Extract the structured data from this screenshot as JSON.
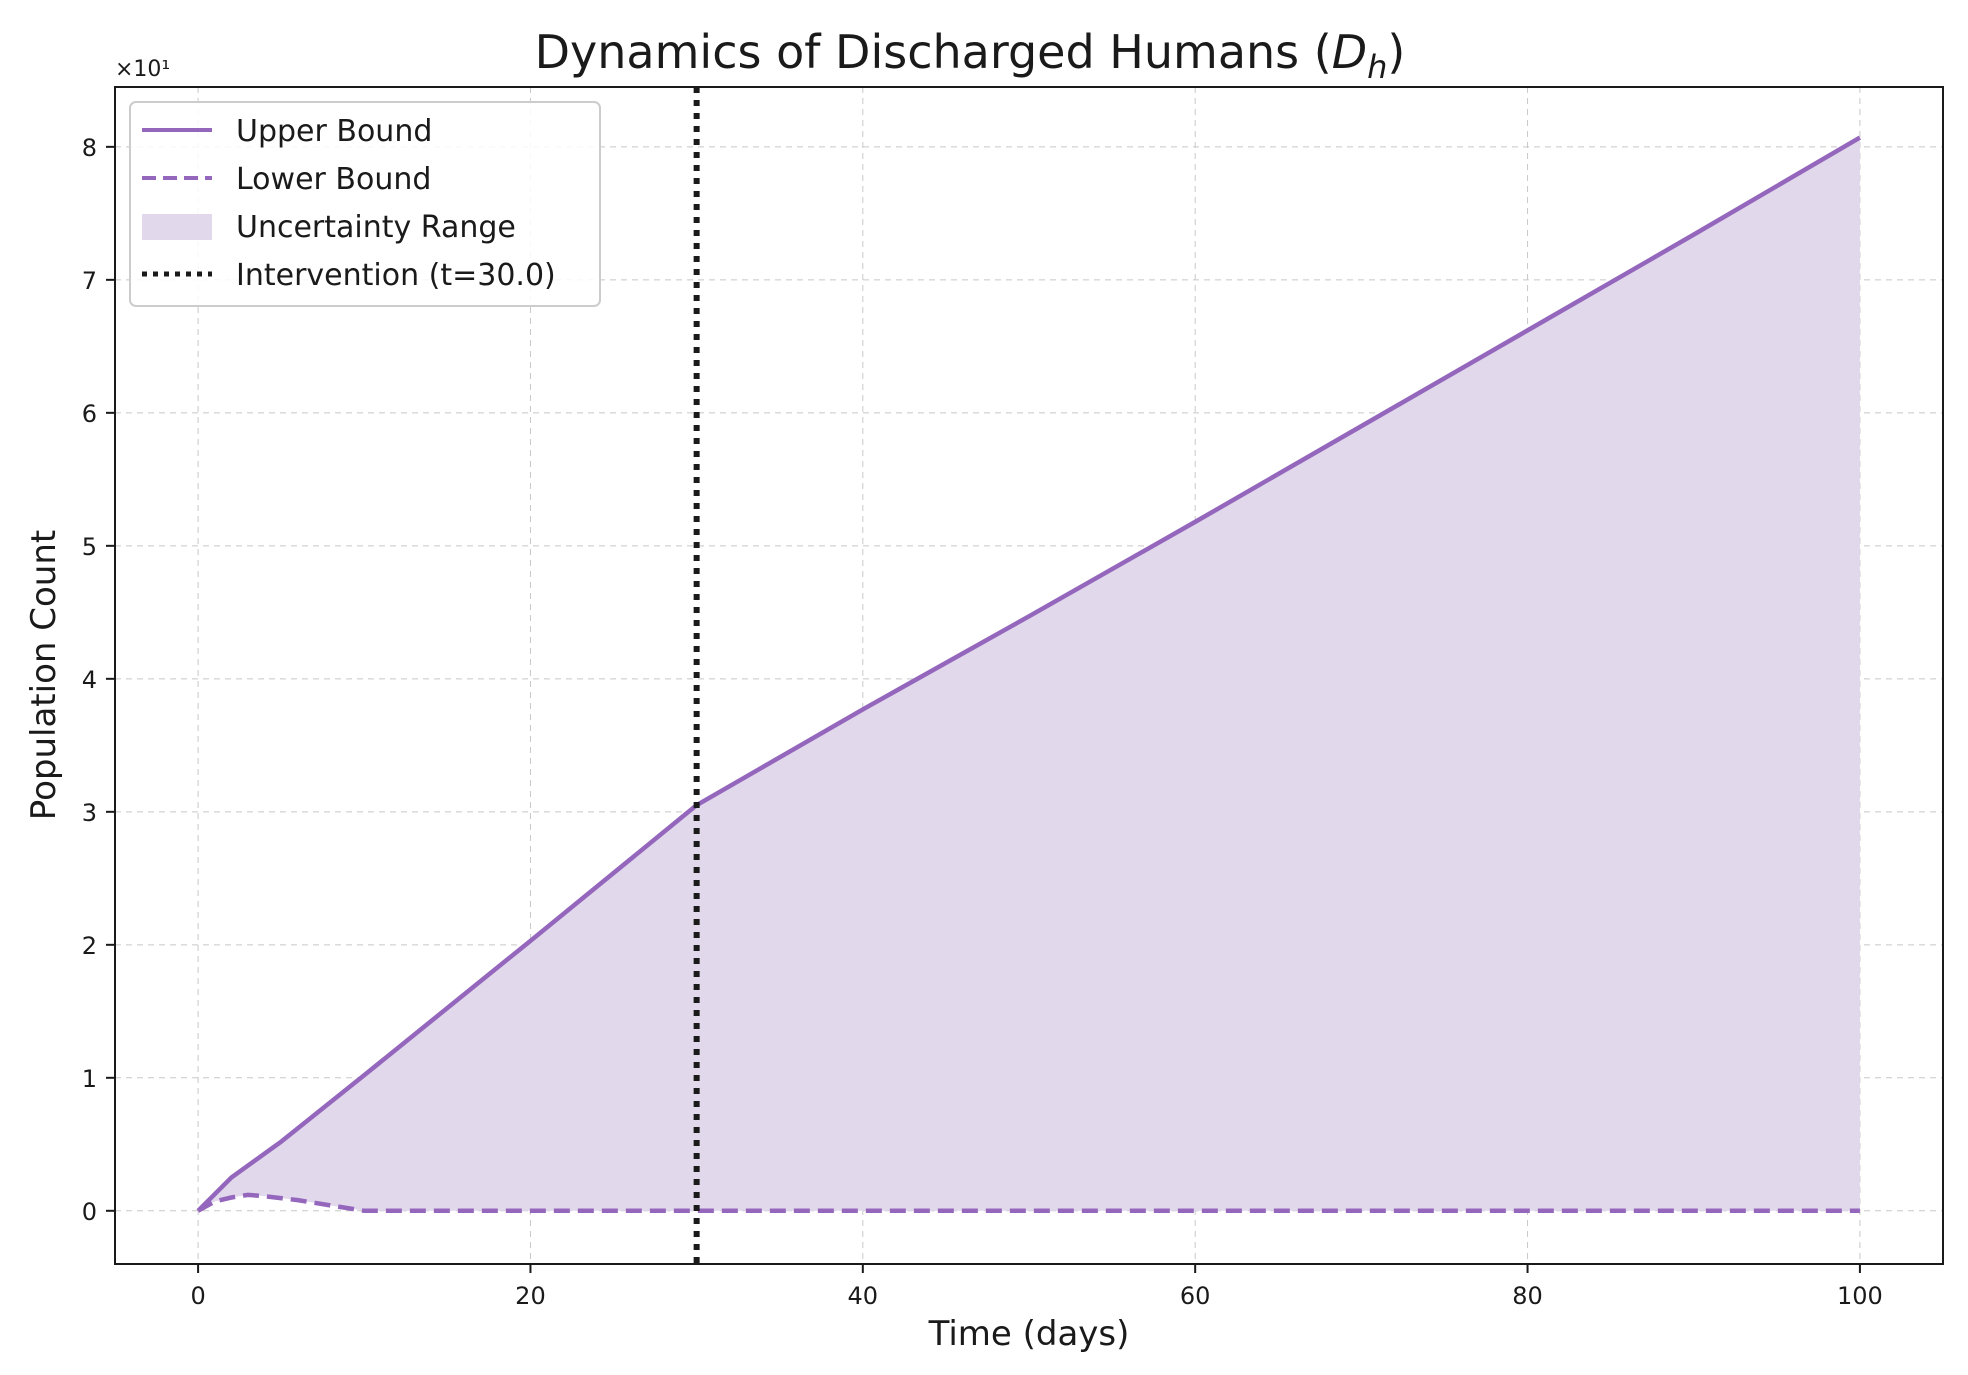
{
  "chart_data": {
    "type": "line",
    "title": "Dynamics of Discharged Humans (",
    "title_math": "D",
    "title_sub": "h",
    "title_end": ")",
    "xlabel": "Time (days)",
    "ylabel": "Population Count",
    "y_offset_label": "×10¹",
    "xlim": [
      -5,
      105
    ],
    "ylim": [
      -0.4,
      8.45
    ],
    "x_ticks": [
      0,
      20,
      40,
      60,
      80,
      100
    ],
    "y_ticks": [
      0,
      1,
      2,
      3,
      4,
      5,
      6,
      7,
      8
    ],
    "grid": true,
    "legend_position": "top-left",
    "colors": {
      "series": "#9467bd",
      "fill": "#e1d8ec",
      "intervention": "#1a1a1a"
    },
    "series": [
      {
        "name": "Upper Bound",
        "style": "solid",
        "x": [
          0,
          2,
          5,
          10,
          20,
          30,
          40,
          50,
          60,
          70,
          80,
          90,
          100
        ],
        "y": [
          0,
          0.25,
          0.52,
          1.02,
          2.03,
          3.05,
          3.77,
          4.47,
          5.18,
          5.9,
          6.62,
          7.34,
          8.07
        ]
      },
      {
        "name": "Lower Bound",
        "style": "dashed",
        "x": [
          0,
          1,
          2,
          3,
          4,
          6,
          8,
          10,
          30,
          60,
          100
        ],
        "y": [
          0,
          0.07,
          0.1,
          0.12,
          0.11,
          0.08,
          0.04,
          0.0,
          0.0,
          0.0,
          0.0
        ]
      }
    ],
    "fill_label": "Uncertainty Range",
    "intervention": {
      "label": "Intervention (t=30.0)",
      "x": 30
    }
  }
}
